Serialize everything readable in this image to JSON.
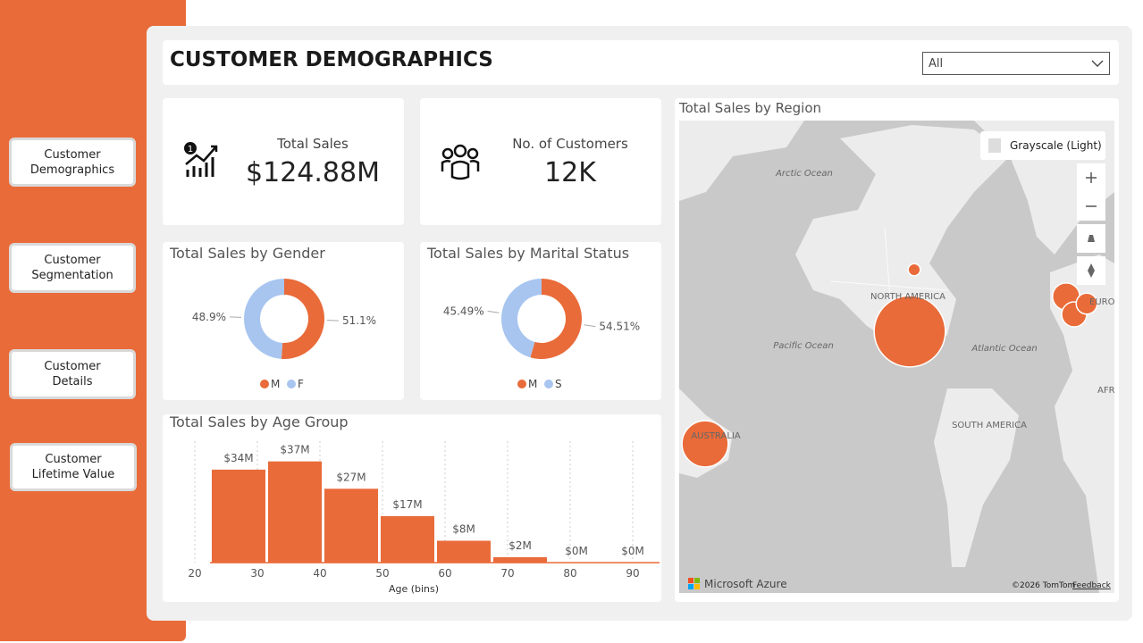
{
  "nav": [
    "Customer Demographics",
    "Customer Segmentation",
    "Customer Details",
    "Customer Lifetime Value"
  ],
  "header": {
    "title": "CUSTOMER DEMOGRAPHICS",
    "filter": "All"
  },
  "kpis": [
    {
      "label": "Total Sales",
      "value": "$124.88M"
    },
    {
      "label": "No. of Customers",
      "value": "12K"
    }
  ],
  "chart_data": [
    {
      "type": "pie",
      "title": "Total Sales by Gender",
      "categories": [
        "M",
        "F"
      ],
      "values": [
        51.1,
        48.9
      ],
      "value_labels": [
        "51.1%",
        "48.9%"
      ],
      "colors": [
        "#E96B39",
        "#A8C5F0"
      ]
    },
    {
      "type": "pie",
      "title": "Total Sales by Marital Status",
      "categories": [
        "M",
        "S"
      ],
      "values": [
        54.51,
        45.49
      ],
      "value_labels": [
        "54.51%",
        "45.49%"
      ],
      "colors": [
        "#E96B39",
        "#A8C5F0"
      ]
    },
    {
      "type": "histogram",
      "title": "Total Sales by Age Group",
      "xlabel": "Age (bins)",
      "bins": [
        22.5,
        31.5,
        40.5,
        49.5,
        58.5,
        67.5,
        76.5,
        85.5,
        94.5
      ],
      "values": [
        34,
        37,
        27,
        17,
        8,
        2,
        0,
        0
      ],
      "value_labels": [
        "$34M",
        "$37M",
        "$27M",
        "$17M",
        "$8M",
        "$2M",
        "$0M",
        "$0M"
      ],
      "xlim": [
        20,
        95
      ],
      "xticks": [
        20,
        30,
        40,
        50,
        60,
        70,
        80,
        90
      ],
      "color": "#E96B39",
      "grid": true
    }
  ],
  "map": {
    "title": "Total Sales by Region",
    "style": "Grayscale (Light)",
    "labels": [
      "Arctic Ocean",
      "NORTH AMERICA",
      "Pacific Ocean",
      "Atlantic Ocean",
      "SOUTH AMERICA",
      "AUSTRALIA",
      "EURO",
      "AFR"
    ],
    "bubbles": [
      2,
      69,
      29,
      10,
      8.5,
      6
    ],
    "color": "#E96B39",
    "brand": "Microsoft Azure",
    "attribution": "©2026 TomTom",
    "feedback": "Feedback"
  }
}
